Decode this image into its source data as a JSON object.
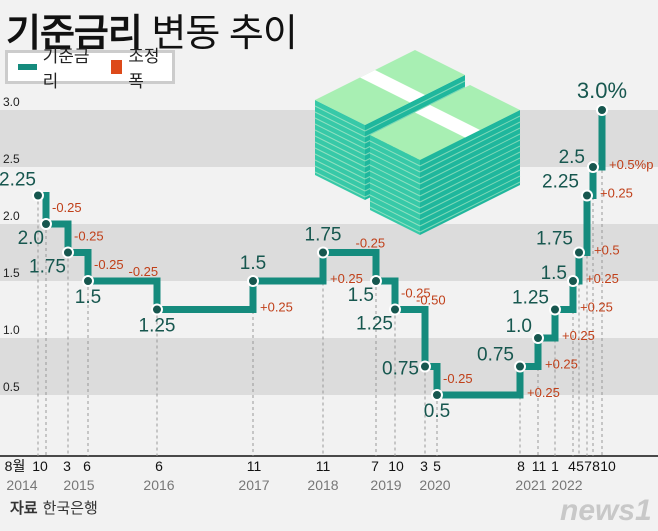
{
  "title": {
    "bold": "기준금리",
    "light": "변동 추이"
  },
  "legend": {
    "rate": "기준금리",
    "change": "조정폭"
  },
  "colors": {
    "rate": "#158b7d",
    "change": "#c0401a",
    "band": "#dcdcdc",
    "label": "#17574f"
  },
  "source": {
    "label": "자료",
    "value": "한국은행"
  },
  "logo": "news1",
  "chart_data": {
    "type": "line",
    "step": true,
    "ylim": [
      0.5,
      3.0
    ],
    "y_ticks": [
      "0.5",
      "1.0",
      "1.5",
      "2.0",
      "2.5",
      "3.0"
    ],
    "grid": "alternating bands",
    "legend_position": "top-left",
    "points": [
      {
        "month": "8월",
        "year": "2014",
        "value": 2.25,
        "label": "2.25",
        "change": ""
      },
      {
        "month": "10",
        "year": "",
        "value": 2.0,
        "label": "2.0",
        "change": "-0.25"
      },
      {
        "month": "3",
        "year": "2015",
        "value": 1.75,
        "label": "1.75",
        "change": "-0.25"
      },
      {
        "month": "6",
        "year": "",
        "value": 1.5,
        "label": "1.5",
        "change": "-0.25"
      },
      {
        "month": "6",
        "year": "2016",
        "value": 1.25,
        "label": "1.25",
        "change": "-0.25"
      },
      {
        "month": "11",
        "year": "2017",
        "value": 1.5,
        "label": "1.5",
        "change": "+0.25"
      },
      {
        "month": "11",
        "year": "2018",
        "value": 1.75,
        "label": "1.75",
        "change": "+0.25"
      },
      {
        "month": "7",
        "year": "2019",
        "value": 1.5,
        "label": "1.5",
        "change": "-0.25"
      },
      {
        "month": "10",
        "year": "",
        "value": 1.25,
        "label": "1.25",
        "change": "-0.25"
      },
      {
        "month": "3",
        "year": "2020",
        "value": 0.75,
        "label": "0.75",
        "change": "-0.50"
      },
      {
        "month": "5",
        "year": "",
        "value": 0.5,
        "label": "0.5",
        "change": "-0.25"
      },
      {
        "month": "8",
        "year": "2021",
        "value": 0.75,
        "label": "0.75",
        "change": "+0.25"
      },
      {
        "month": "11",
        "year": "",
        "value": 1.0,
        "label": "1.0",
        "change": "+0.25"
      },
      {
        "month": "1",
        "year": "2022",
        "value": 1.25,
        "label": "1.25",
        "change": "+0.25"
      },
      {
        "month": "4",
        "year": "",
        "value": 1.5,
        "label": "1.5",
        "change": "+0.25"
      },
      {
        "month": "5",
        "year": "",
        "value": 1.75,
        "label": "1.75",
        "change": "+0.25"
      },
      {
        "month": "7",
        "year": "",
        "value": 2.25,
        "label": "2.25",
        "change": "+0.5"
      },
      {
        "month": "8",
        "year": "",
        "value": 2.5,
        "label": "2.5",
        "change": "+0.25"
      },
      {
        "month": "10",
        "year": "",
        "value": 3.0,
        "label": "3.0%",
        "change": "+0.5%p"
      }
    ]
  }
}
